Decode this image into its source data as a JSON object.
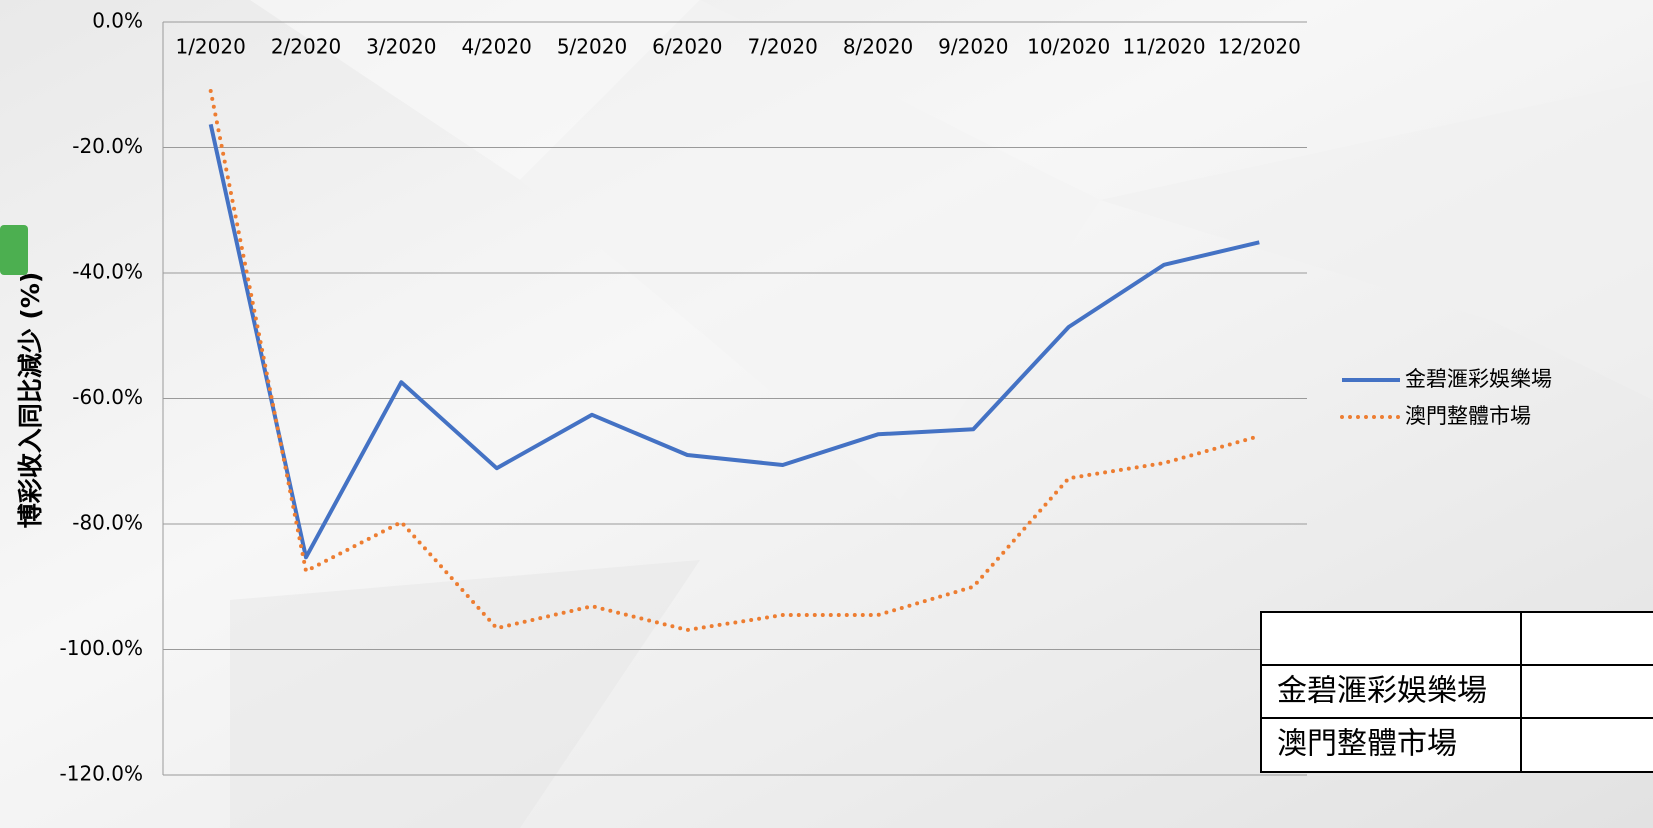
{
  "chart_data": {
    "type": "line",
    "y_label": "博彩收入同比減少 (%)",
    "categories": [
      "1/2020",
      "2/2020",
      "3/2020",
      "4/2020",
      "5/2020",
      "6/2020",
      "7/2020",
      "8/2020",
      "9/2020",
      "10/2020",
      "11/2020",
      "12/2020"
    ],
    "series": [
      {
        "name": "金碧滙彩娛樂場",
        "color": "#4472c4",
        "style": "solid",
        "values": [
          -16.3,
          -85.3,
          -57.4,
          -71.1,
          -62.6,
          -69.0,
          -70.6,
          -65.7,
          -64.9,
          -48.6,
          -38.7,
          -35.1
        ]
      },
      {
        "name": "澳門整體市場",
        "color": "#ed7d31",
        "style": "dotted",
        "values": [
          -11.0,
          -87.5,
          -79.7,
          -96.6,
          -93.1,
          -96.9,
          -94.5,
          -94.5,
          -90.0,
          -72.7,
          -70.3,
          -66.0
        ]
      }
    ],
    "ylim": [
      -120,
      0
    ],
    "yticks": [
      {
        "value": 0,
        "label": "0.0%"
      },
      {
        "value": -20,
        "label": "-20.0%"
      },
      {
        "value": -40,
        "label": "-40.0%"
      },
      {
        "value": -60,
        "label": "-60.0%"
      },
      {
        "value": -80,
        "label": "-80.0%"
      },
      {
        "value": -100,
        "label": "-100.0%"
      },
      {
        "value": -120,
        "label": "-120.0%"
      }
    ],
    "grid": true,
    "legend": "right"
  }
}
